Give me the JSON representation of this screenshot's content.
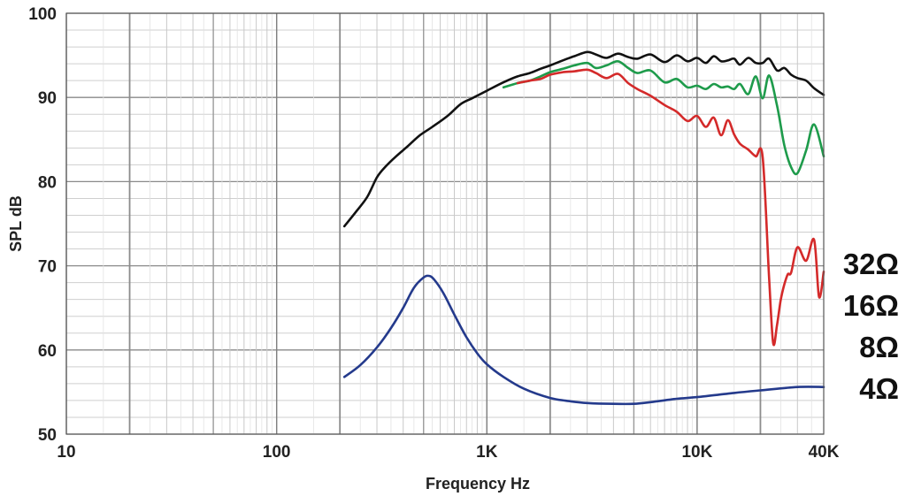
{
  "chart_data": {
    "type": "line",
    "title": "",
    "xlabel": "Frequency Hz",
    "ylabel": "SPL dB",
    "xscale": "log",
    "xlim": [
      10,
      40000
    ],
    "ylim": [
      50,
      100
    ],
    "grid": true,
    "x_ticks": [
      {
        "value": 10,
        "label": "10"
      },
      {
        "value": 100,
        "label": "100"
      },
      {
        "value": 1000,
        "label": "1K"
      },
      {
        "value": 10000,
        "label": "10K"
      },
      {
        "value": 40000,
        "label": "40K"
      }
    ],
    "y_ticks": [
      {
        "value": 50,
        "label": "50"
      },
      {
        "value": 60,
        "label": "60"
      },
      {
        "value": 70,
        "label": "70"
      },
      {
        "value": 80,
        "label": "80"
      },
      {
        "value": 90,
        "label": "90"
      },
      {
        "value": 100,
        "label": "100"
      }
    ],
    "series": [
      {
        "color": "#111111",
        "x": [
          210,
          240,
          270,
          300,
          330,
          370,
          420,
          480,
          550,
          650,
          750,
          850,
          1000,
          1200,
          1400,
          1600,
          1800,
          2000,
          2300,
          2600,
          3000,
          3300,
          3700,
          4200,
          4700,
          5200,
          6000,
          7000,
          8000,
          9000,
          10000,
          11000,
          12000,
          13000,
          14000,
          15000,
          16000,
          17500,
          19000,
          20500,
          22000,
          24000,
          26000,
          28000,
          30000,
          33000,
          36000,
          40000
        ],
        "y": [
          74.7,
          76.5,
          78.2,
          80.5,
          81.8,
          83.0,
          84.2,
          85.5,
          86.5,
          87.8,
          89.2,
          89.9,
          90.8,
          91.8,
          92.5,
          92.9,
          93.4,
          93.8,
          94.4,
          94.9,
          95.4,
          95.1,
          94.7,
          95.2,
          94.8,
          94.6,
          95.1,
          94.2,
          95.0,
          94.3,
          94.7,
          94.1,
          94.9,
          94.3,
          94.4,
          94.6,
          93.9,
          94.7,
          94.1,
          94.1,
          94.6,
          93.2,
          93.5,
          92.7,
          92.3,
          92.0,
          91.1,
          90.3
        ]
      },
      {
        "color": "#1e9b4b",
        "x": [
          1200,
          1400,
          1600,
          1800,
          2000,
          2300,
          2600,
          3000,
          3300,
          3700,
          4200,
          4700,
          5200,
          6000,
          7000,
          8000,
          9000,
          10000,
          11000,
          12000,
          13000,
          14000,
          15000,
          16000,
          17500,
          19000,
          20500,
          22000,
          24000,
          26000,
          28000,
          30000,
          33000,
          36000,
          40000
        ],
        "y": [
          91.2,
          91.7,
          92.0,
          92.5,
          93.0,
          93.4,
          93.8,
          94.1,
          93.5,
          93.8,
          94.3,
          93.5,
          92.9,
          93.2,
          91.8,
          92.2,
          91.2,
          91.4,
          91.0,
          91.6,
          91.2,
          91.3,
          91.0,
          91.6,
          90.4,
          92.5,
          89.9,
          92.6,
          89.0,
          84.3,
          81.7,
          81.0,
          83.7,
          86.8,
          83.0
        ]
      },
      {
        "color": "#d42a2a",
        "x": [
          1400,
          1600,
          1800,
          2000,
          2300,
          2600,
          3000,
          3300,
          3700,
          4200,
          4700,
          5200,
          6000,
          7000,
          8000,
          9000,
          10000,
          11000,
          12000,
          13000,
          14000,
          15000,
          16000,
          17500,
          19000,
          20500,
          22000,
          23000,
          24000,
          25000,
          26000,
          27000,
          28000,
          30000,
          33000,
          36000,
          38000,
          40000
        ],
        "y": [
          91.7,
          92.0,
          92.2,
          92.7,
          93.0,
          93.1,
          93.3,
          92.9,
          92.3,
          92.8,
          91.7,
          91.0,
          90.2,
          89.1,
          88.3,
          87.2,
          87.8,
          86.5,
          87.6,
          85.5,
          87.3,
          85.6,
          84.5,
          83.8,
          83.0,
          82.9,
          68.5,
          60.8,
          63.0,
          66.0,
          67.8,
          69.0,
          69.2,
          72.2,
          70.6,
          73.1,
          66.3,
          69.3
        ]
      },
      {
        "color": "#243a8c",
        "x": [
          210,
          250,
          300,
          350,
          400,
          450,
          500,
          530,
          560,
          620,
          700,
          800,
          900,
          1000,
          1200,
          1500,
          2000,
          2500,
          3000,
          4000,
          5000,
          6000,
          8000,
          10000,
          15000,
          20000,
          30000,
          40000
        ],
        "y": [
          56.8,
          58.2,
          60.3,
          62.6,
          65.0,
          67.4,
          68.6,
          68.8,
          68.4,
          66.8,
          64.2,
          61.5,
          59.6,
          58.3,
          56.8,
          55.4,
          54.3,
          53.9,
          53.7,
          53.6,
          53.6,
          53.8,
          54.2,
          54.4,
          54.9,
          55.2,
          55.6,
          55.6
        ]
      }
    ],
    "impedance_labels": [
      "32Ω",
      "16Ω",
      "8Ω",
      "4Ω"
    ]
  }
}
